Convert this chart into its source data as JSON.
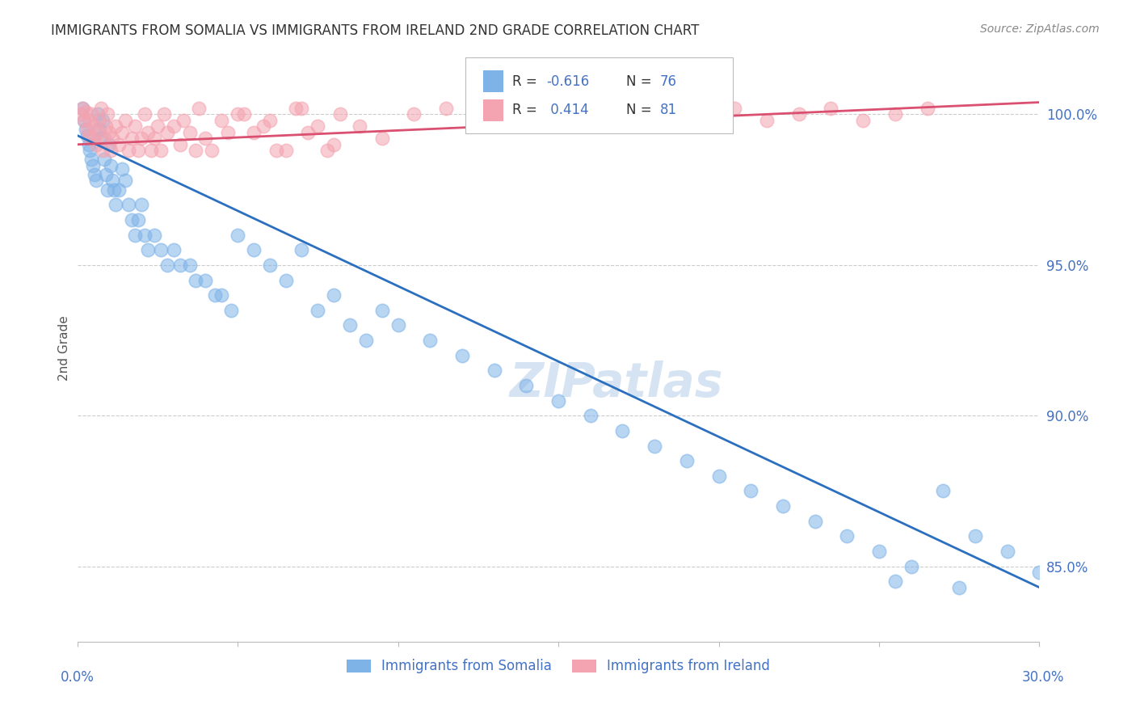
{
  "title": "IMMIGRANTS FROM SOMALIA VS IMMIGRANTS FROM IRELAND 2ND GRADE CORRELATION CHART",
  "source": "Source: ZipAtlas.com",
  "ylabel": "2nd Grade",
  "x_min": 0.0,
  "x_max": 30.0,
  "y_min": 82.5,
  "y_max": 102.0,
  "legend_blue_label": "Immigrants from Somalia",
  "legend_pink_label": "Immigrants from Ireland",
  "blue_color": "#7EB3E8",
  "pink_color": "#F4A3B0",
  "blue_line_color": "#2B6FBF",
  "pink_line_color": "#D95070",
  "axis_color": "#4472C4",
  "yticks": [
    85.0,
    90.0,
    95.0,
    100.0
  ],
  "blue_trend_x0": 0.0,
  "blue_trend_y0": 99.3,
  "blue_trend_x1": 30.0,
  "blue_trend_y1": 84.3,
  "pink_trend_x0": 0.0,
  "pink_trend_y0": 99.0,
  "pink_trend_x1": 30.0,
  "pink_trend_y1": 100.4,
  "blue_x": [
    0.15,
    0.2,
    0.25,
    0.3,
    0.35,
    0.4,
    0.45,
    0.5,
    0.55,
    0.6,
    0.65,
    0.7,
    0.75,
    0.8,
    0.85,
    0.9,
    0.95,
    1.0,
    1.05,
    1.1,
    1.15,
    1.2,
    1.3,
    1.4,
    1.5,
    1.6,
    1.7,
    1.8,
    1.9,
    2.0,
    2.1,
    2.2,
    2.4,
    2.6,
    2.8,
    3.0,
    3.2,
    3.5,
    3.7,
    4.0,
    4.3,
    4.5,
    4.8,
    5.0,
    5.5,
    6.0,
    6.5,
    7.0,
    7.5,
    8.0,
    8.5,
    9.0,
    9.5,
    10.0,
    11.0,
    12.0,
    13.0,
    14.0,
    15.0,
    16.0,
    17.0,
    18.0,
    19.0,
    20.0,
    21.0,
    22.0,
    23.0,
    24.0,
    25.0,
    26.0,
    27.0,
    28.0,
    29.0,
    30.0,
    25.5,
    27.5
  ],
  "blue_y": [
    100.2,
    99.8,
    99.5,
    99.3,
    99.0,
    98.8,
    98.5,
    98.3,
    98.0,
    97.8,
    100.0,
    99.5,
    99.2,
    99.8,
    98.5,
    98.0,
    97.5,
    99.0,
    98.3,
    97.8,
    97.5,
    97.0,
    97.5,
    98.2,
    97.8,
    97.0,
    96.5,
    96.0,
    96.5,
    97.0,
    96.0,
    95.5,
    96.0,
    95.5,
    95.0,
    95.5,
    95.0,
    95.0,
    94.5,
    94.5,
    94.0,
    94.0,
    93.5,
    96.0,
    95.5,
    95.0,
    94.5,
    95.5,
    93.5,
    94.0,
    93.0,
    92.5,
    93.5,
    93.0,
    92.5,
    92.0,
    91.5,
    91.0,
    90.5,
    90.0,
    89.5,
    89.0,
    88.5,
    88.0,
    87.5,
    87.0,
    86.5,
    86.0,
    85.5,
    85.0,
    87.5,
    86.0,
    85.5,
    84.8,
    84.5,
    84.3
  ],
  "pink_x": [
    0.1,
    0.15,
    0.2,
    0.25,
    0.3,
    0.35,
    0.4,
    0.45,
    0.5,
    0.55,
    0.6,
    0.65,
    0.7,
    0.75,
    0.8,
    0.85,
    0.9,
    0.95,
    1.0,
    1.05,
    1.1,
    1.2,
    1.3,
    1.4,
    1.5,
    1.6,
    1.7,
    1.8,
    1.9,
    2.0,
    2.1,
    2.2,
    2.3,
    2.4,
    2.5,
    2.6,
    2.7,
    2.8,
    3.0,
    3.2,
    3.5,
    3.7,
    4.0,
    4.5,
    5.0,
    5.5,
    6.0,
    6.5,
    7.0,
    7.5,
    8.0,
    3.3,
    3.8,
    4.2,
    4.7,
    5.2,
    5.8,
    6.2,
    6.8,
    7.2,
    7.8,
    8.2,
    8.8,
    9.5,
    10.5,
    11.5,
    12.5,
    13.5,
    14.0,
    15.5,
    16.5,
    17.5,
    18.5,
    19.5,
    20.5,
    21.5,
    22.5,
    23.5,
    24.5,
    25.5,
    26.5
  ],
  "pink_y": [
    100.0,
    100.2,
    99.8,
    100.1,
    99.5,
    99.3,
    99.8,
    100.0,
    99.2,
    99.6,
    99.0,
    99.4,
    99.8,
    100.2,
    98.8,
    99.2,
    99.6,
    100.0,
    99.4,
    98.8,
    99.2,
    99.6,
    99.0,
    99.4,
    99.8,
    98.8,
    99.2,
    99.6,
    98.8,
    99.2,
    100.0,
    99.4,
    98.8,
    99.2,
    99.6,
    98.8,
    100.0,
    99.4,
    99.6,
    99.0,
    99.4,
    98.8,
    99.2,
    99.8,
    100.0,
    99.4,
    99.8,
    98.8,
    100.2,
    99.6,
    99.0,
    99.8,
    100.2,
    98.8,
    99.4,
    100.0,
    99.6,
    98.8,
    100.2,
    99.4,
    98.8,
    100.0,
    99.6,
    99.2,
    100.0,
    100.2,
    99.8,
    100.0,
    100.2,
    99.8,
    100.0,
    100.2,
    99.8,
    100.0,
    100.2,
    99.8,
    100.0,
    100.2,
    99.8,
    100.0,
    100.2
  ]
}
